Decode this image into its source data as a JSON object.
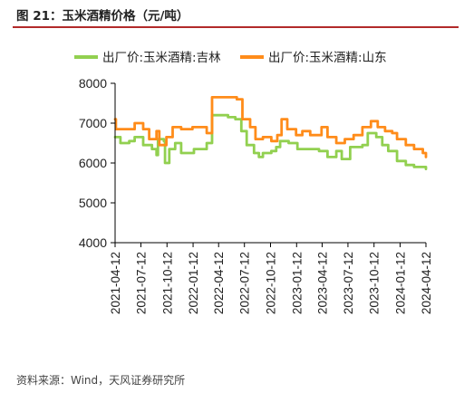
{
  "header": {
    "title": "图 21：玉米酒精价格（元/吨）"
  },
  "footer": {
    "source": "资料来源：Wind，天风证券研究所"
  },
  "chart_data": {
    "type": "line",
    "title": "",
    "xlabel": "",
    "ylabel": "",
    "ylim": [
      4000,
      8000
    ],
    "yticks": [
      "4000",
      "5000",
      "6000",
      "7000",
      "8000"
    ],
    "xticks": [
      "2021-04-12",
      "2021-07-12",
      "2021-10-12",
      "2022-01-12",
      "2022-04-12",
      "2022-07-12",
      "2022-10-12",
      "2023-01-12",
      "2023-04-12",
      "2023-07-12",
      "2023-10-12",
      "2024-01-12",
      "2024-04-12"
    ],
    "legend_position": "top",
    "series": [
      {
        "name": "出厂价:玉米酒精:吉林",
        "color": "#92d050",
        "points": [
          [
            "2021-04-12",
            6650
          ],
          [
            "2021-05-01",
            6500
          ],
          [
            "2021-06-01",
            6550
          ],
          [
            "2021-06-20",
            6650
          ],
          [
            "2021-07-20",
            6450
          ],
          [
            "2021-08-20",
            6350
          ],
          [
            "2021-09-05",
            6200
          ],
          [
            "2021-09-10",
            6600
          ],
          [
            "2021-10-01",
            6550
          ],
          [
            "2021-10-05",
            6000
          ],
          [
            "2021-10-20",
            6350
          ],
          [
            "2021-11-10",
            6500
          ],
          [
            "2021-12-01",
            6250
          ],
          [
            "2022-01-15",
            6350
          ],
          [
            "2022-03-01",
            6500
          ],
          [
            "2022-03-20",
            7200
          ],
          [
            "2022-05-15",
            7150
          ],
          [
            "2022-06-10",
            7100
          ],
          [
            "2022-07-01",
            6800
          ],
          [
            "2022-07-20",
            6450
          ],
          [
            "2022-08-15",
            6250
          ],
          [
            "2022-09-01",
            6150
          ],
          [
            "2022-09-15",
            6250
          ],
          [
            "2022-10-15",
            6300
          ],
          [
            "2022-11-01",
            6400
          ],
          [
            "2022-11-15",
            6550
          ],
          [
            "2022-12-15",
            6500
          ],
          [
            "2023-01-15",
            6350
          ],
          [
            "2023-04-01",
            6300
          ],
          [
            "2023-05-01",
            6150
          ],
          [
            "2023-06-01",
            6300
          ],
          [
            "2023-06-20",
            6100
          ],
          [
            "2023-07-20",
            6400
          ],
          [
            "2023-09-01",
            6450
          ],
          [
            "2023-09-20",
            6750
          ],
          [
            "2023-10-20",
            6650
          ],
          [
            "2023-11-10",
            6450
          ],
          [
            "2023-12-01",
            6300
          ],
          [
            "2024-01-01",
            6050
          ],
          [
            "2024-02-01",
            5950
          ],
          [
            "2024-03-01",
            5900
          ],
          [
            "2024-04-12",
            5850
          ]
        ]
      },
      {
        "name": "出厂价:玉米酒精:山东",
        "color": "#ff8c1a",
        "points": [
          [
            "2021-04-12",
            7100
          ],
          [
            "2021-04-15",
            6850
          ],
          [
            "2021-05-15",
            6850
          ],
          [
            "2021-06-20",
            7000
          ],
          [
            "2021-07-20",
            6850
          ],
          [
            "2021-08-10",
            6600
          ],
          [
            "2021-09-05",
            6800
          ],
          [
            "2021-09-15",
            6450
          ],
          [
            "2021-10-10",
            6650
          ],
          [
            "2021-11-01",
            6900
          ],
          [
            "2021-12-01",
            6850
          ],
          [
            "2022-01-10",
            6900
          ],
          [
            "2022-03-01",
            6750
          ],
          [
            "2022-03-20",
            7650
          ],
          [
            "2022-06-15",
            7600
          ],
          [
            "2022-07-05",
            7100
          ],
          [
            "2022-08-01",
            6900
          ],
          [
            "2022-08-20",
            6600
          ],
          [
            "2022-09-15",
            6650
          ],
          [
            "2022-10-15",
            6550
          ],
          [
            "2022-11-05",
            6700
          ],
          [
            "2022-11-20",
            7100
          ],
          [
            "2022-12-10",
            6850
          ],
          [
            "2023-01-10",
            6700
          ],
          [
            "2023-02-01",
            6800
          ],
          [
            "2023-03-01",
            6700
          ],
          [
            "2023-04-10",
            6900
          ],
          [
            "2023-05-01",
            6650
          ],
          [
            "2023-06-01",
            6500
          ],
          [
            "2023-07-01",
            6600
          ],
          [
            "2023-08-01",
            6700
          ],
          [
            "2023-09-01",
            6900
          ],
          [
            "2023-10-01",
            7050
          ],
          [
            "2023-10-25",
            6900
          ],
          [
            "2023-11-20",
            6800
          ],
          [
            "2023-12-15",
            6750
          ],
          [
            "2024-01-01",
            6600
          ],
          [
            "2024-02-01",
            6450
          ],
          [
            "2024-03-01",
            6350
          ],
          [
            "2024-04-01",
            6250
          ],
          [
            "2024-04-12",
            6150
          ]
        ]
      }
    ]
  }
}
